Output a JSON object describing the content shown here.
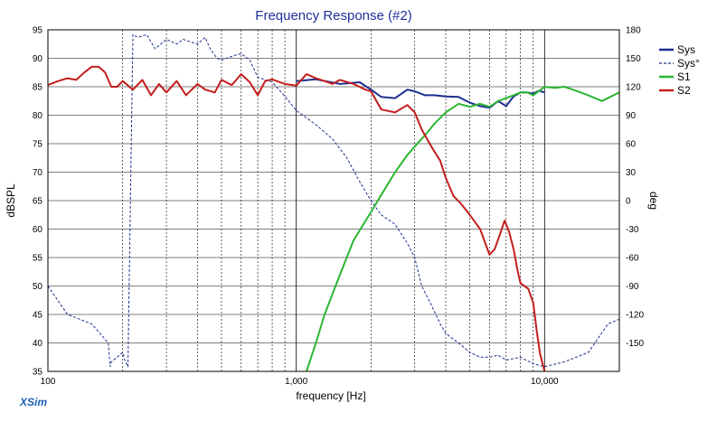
{
  "window": {
    "brand": "XSim"
  },
  "chart_data": {
    "type": "line",
    "title": "Frequency Response (#2)",
    "xlabel": "frequency [Hz]",
    "ylabel": "dBSPL",
    "y2label": "deg",
    "xscale": "log",
    "xlim": [
      100,
      20000
    ],
    "ylim": [
      35,
      95
    ],
    "y2lim": [
      -180,
      180
    ],
    "grid": true,
    "legend_position": "right",
    "x_ticks": [
      {
        "v": 100,
        "label": "100"
      },
      {
        "v": 1000,
        "label": "1,000"
      },
      {
        "v": 10000,
        "label": "10,000"
      }
    ],
    "y_ticks": [
      {
        "v": 35,
        "label": "35"
      },
      {
        "v": 40,
        "label": "40"
      },
      {
        "v": 45,
        "label": "45"
      },
      {
        "v": 50,
        "label": "50"
      },
      {
        "v": 55,
        "label": "55"
      },
      {
        "v": 60,
        "label": "60"
      },
      {
        "v": 65,
        "label": "65"
      },
      {
        "v": 70,
        "label": "70"
      },
      {
        "v": 75,
        "label": "75"
      },
      {
        "v": 80,
        "label": "80"
      },
      {
        "v": 85,
        "label": "85"
      },
      {
        "v": 90,
        "label": "90"
      },
      {
        "v": 95,
        "label": "95"
      }
    ],
    "y2_ticks": [
      {
        "v": 180,
        "label": "180"
      },
      {
        "v": 150,
        "label": "150"
      },
      {
        "v": 120,
        "label": "120"
      },
      {
        "v": 90,
        "label": "90"
      },
      {
        "v": 60,
        "label": "60"
      },
      {
        "v": 30,
        "label": "30"
      },
      {
        "v": 0,
        "label": "0"
      },
      {
        "v": -30,
        "label": "-30"
      },
      {
        "v": -60,
        "label": "-60"
      },
      {
        "v": -90,
        "label": "-90"
      },
      {
        "v": -120,
        "label": "-120"
      },
      {
        "v": -150,
        "label": "-150"
      }
    ],
    "series": [
      {
        "name": "Sys",
        "axis": "left",
        "color": "#1c2f8f",
        "dash": "solid",
        "x": [
          1000,
          1200,
          1500,
          1800,
          2000,
          2200,
          2500,
          2800,
          3000,
          3300,
          3600,
          4000,
          4500,
          5000,
          5500,
          6000,
          6500,
          7000,
          7500,
          8000,
          8500,
          9000,
          9500,
          10000
        ],
        "y": [
          86,
          86.3,
          85.5,
          85.8,
          84.5,
          83.2,
          83.0,
          84.5,
          84.2,
          83.5,
          83.5,
          83.3,
          83.2,
          82.2,
          81.6,
          81.3,
          82.5,
          81.6,
          83.3,
          84.0,
          84.0,
          83.8,
          84.3,
          84.0
        ]
      },
      {
        "name": "Sys°",
        "axis": "right",
        "color": "#1c2f8f",
        "dash": "dashed",
        "x": [
          100,
          120,
          150,
          175,
          178,
          180,
          190,
          200,
          205,
          210,
          220,
          230,
          250,
          270,
          300,
          330,
          350,
          400,
          430,
          450,
          480,
          500,
          550,
          600,
          650,
          700,
          800,
          900,
          1000,
          1200,
          1400,
          1600,
          1800,
          2000,
          2200,
          2500,
          2800,
          3000,
          3200,
          3500,
          3800,
          4000,
          4500,
          5000,
          5500,
          6000,
          6500,
          7000,
          8000,
          9000,
          10000,
          12000,
          15000,
          18000,
          20000
        ],
        "y": [
          -90,
          -120,
          -130,
          -150,
          -175,
          -170,
          -165,
          -160,
          -170,
          -175,
          175,
          172,
          175,
          160,
          170,
          165,
          170,
          165,
          172,
          160,
          150,
          148,
          152,
          155,
          148,
          130,
          125,
          110,
          95,
          80,
          65,
          45,
          20,
          0,
          -15,
          -25,
          -45,
          -60,
          -90,
          -110,
          -130,
          -140,
          -150,
          -160,
          -165,
          -165,
          -163,
          -168,
          -165,
          -172,
          -175,
          -170,
          -160,
          -130,
          -125
        ]
      },
      {
        "name": "S1",
        "axis": "left",
        "color": "#2bb532",
        "dash": "solid",
        "x": [
          1100,
          1200,
          1300,
          1500,
          1700,
          2000,
          2200,
          2500,
          2800,
          3000,
          3300,
          3600,
          4000,
          4500,
          5000,
          5500,
          6000,
          6500,
          7000,
          7500,
          8000,
          8500,
          9000,
          10000,
          11000,
          12000,
          13000,
          15000,
          17000,
          20000
        ],
        "y": [
          35,
          40,
          45,
          52,
          58,
          63,
          66,
          70,
          73,
          74.5,
          76.5,
          78.5,
          80.5,
          82,
          81.5,
          82,
          81.5,
          82.5,
          83,
          83.5,
          84,
          84,
          83.5,
          85,
          84.8,
          85,
          84.5,
          83.5,
          82.5,
          84
        ]
      },
      {
        "name": "S2",
        "axis": "left",
        "color": "#c41e1e",
        "dash": "solid",
        "x": [
          100,
          110,
          120,
          130,
          140,
          150,
          160,
          170,
          180,
          190,
          200,
          220,
          240,
          260,
          280,
          300,
          330,
          360,
          400,
          430,
          470,
          500,
          550,
          600,
          650,
          700,
          750,
          800,
          900,
          1000,
          1100,
          1200,
          1300,
          1400,
          1500,
          1700,
          1900,
          2000,
          2200,
          2500,
          2800,
          3000,
          3200,
          3500,
          3800,
          4000,
          4300,
          4600,
          5000,
          5500,
          6000,
          6300,
          6600,
          6900,
          7200,
          7500,
          7800,
          8000,
          8300,
          8600,
          9000,
          9300,
          9600,
          10000,
          10200
        ],
        "y": [
          85.3,
          86,
          86.5,
          86.2,
          87.5,
          88.5,
          88.5,
          87.5,
          85,
          85,
          86,
          84.5,
          86.2,
          83.5,
          85.5,
          84,
          86,
          83.5,
          85.5,
          84.5,
          84,
          86.2,
          85.3,
          87.2,
          85.8,
          83.5,
          86,
          86.3,
          85.5,
          85.2,
          87.2,
          86.5,
          86,
          85.5,
          86.2,
          85.5,
          84.5,
          84.2,
          81,
          80.5,
          81.8,
          80.5,
          77.5,
          74.5,
          72,
          69,
          65.8,
          64.5,
          62.5,
          60,
          55.5,
          56.5,
          59,
          61.5,
          59.5,
          56.5,
          52.5,
          50.5,
          50,
          49.5,
          47,
          42,
          38,
          35,
          34.5
        ]
      }
    ]
  }
}
